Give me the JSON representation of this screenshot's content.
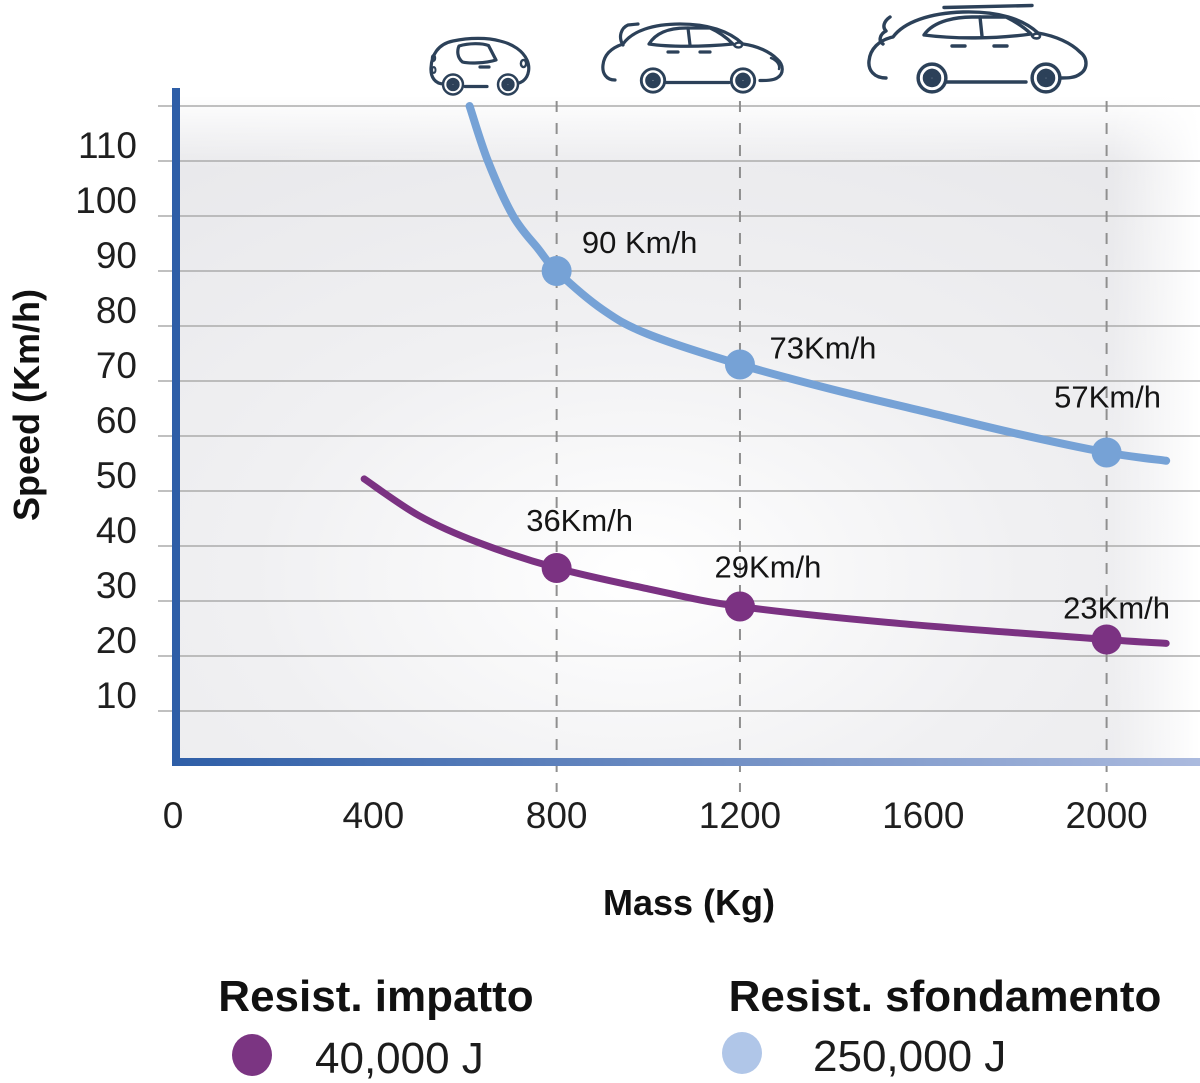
{
  "chart_data": {
    "type": "line",
    "title": "",
    "xlabel": "Mass (Kg)",
    "ylabel": "Speed (Km/h)",
    "x_ticks": [
      0,
      400,
      800,
      1200,
      1600,
      2000
    ],
    "y_ticks": [
      10,
      20,
      30,
      40,
      50,
      60,
      70,
      80,
      90,
      100,
      110
    ],
    "y_grid_top": 120,
    "xlim": [
      0,
      2200
    ],
    "ylim": [
      0,
      122
    ],
    "grid": true,
    "legend_position": "bottom",
    "guide_masses": [
      800,
      1200,
      2000
    ],
    "series": [
      {
        "name": "Resist. impatto",
        "energy": "40,000 J",
        "color": "#7b3282",
        "line_width": 7,
        "points": [
          {
            "mass": 800,
            "speed": 36,
            "label": "36Km/h",
            "label_offset": [
              23,
              -45
            ]
          },
          {
            "mass": 1200,
            "speed": 29,
            "label": "29Km/h",
            "label_offset": [
              28,
              -37
            ]
          },
          {
            "mass": 2000,
            "speed": 23,
            "label": "23Km/h",
            "label_offset": [
              10,
              -29
            ]
          }
        ],
        "curve": [
          [
            380,
            52.2
          ],
          [
            500,
            45.5
          ],
          [
            630,
            40.6
          ],
          [
            800,
            36
          ],
          [
            1000,
            32.2
          ],
          [
            1200,
            29
          ],
          [
            1550,
            25.9
          ],
          [
            2000,
            23
          ],
          [
            2130,
            22.3
          ]
        ]
      },
      {
        "name": "Resist. sfondamento",
        "energy": "250,000 J",
        "color": "#76a2d6",
        "line_width": 8,
        "points": [
          {
            "mass": 800,
            "speed": 90,
            "label": "90 Km/h",
            "label_offset": [
              83,
              -26
            ]
          },
          {
            "mass": 1200,
            "speed": 73,
            "label": "73Km/h",
            "label_offset": [
              83,
              -14
            ]
          },
          {
            "mass": 2000,
            "speed": 57,
            "label": "57Km/h",
            "label_offset": [
              1,
              -53
            ]
          }
        ],
        "curve": [
          [
            610,
            120
          ],
          [
            650,
            110
          ],
          [
            705,
            100
          ],
          [
            760,
            94
          ],
          [
            800,
            90
          ],
          [
            900,
            83
          ],
          [
            1000,
            78.5
          ],
          [
            1200,
            73
          ],
          [
            1400,
            68.5
          ],
          [
            1600,
            64.5
          ],
          [
            1800,
            60.5
          ],
          [
            2000,
            57
          ],
          [
            2130,
            55.5
          ]
        ]
      }
    ],
    "legend": {
      "items": [
        {
          "label": "Resist. impatto",
          "value": "40,000 J",
          "dot_color": "#7b3582"
        },
        {
          "label": "Resist. sfondamento",
          "value": "250,000 J",
          "dot_color": "#b0c6e8"
        }
      ]
    },
    "cars": [
      {
        "icon": "car-small-icon",
        "size": "small"
      },
      {
        "icon": "car-medium-icon",
        "size": "medium"
      },
      {
        "icon": "car-large-icon",
        "size": "large"
      }
    ]
  },
  "colors": {
    "axis": "#2e5ea7",
    "axis_fade": "#abbade",
    "grid": "#ababab",
    "guide": "#8f8f8f",
    "tick_text": "#1f1f1f",
    "point_label_text": "#151515",
    "car_outline": "#2c4159"
  }
}
